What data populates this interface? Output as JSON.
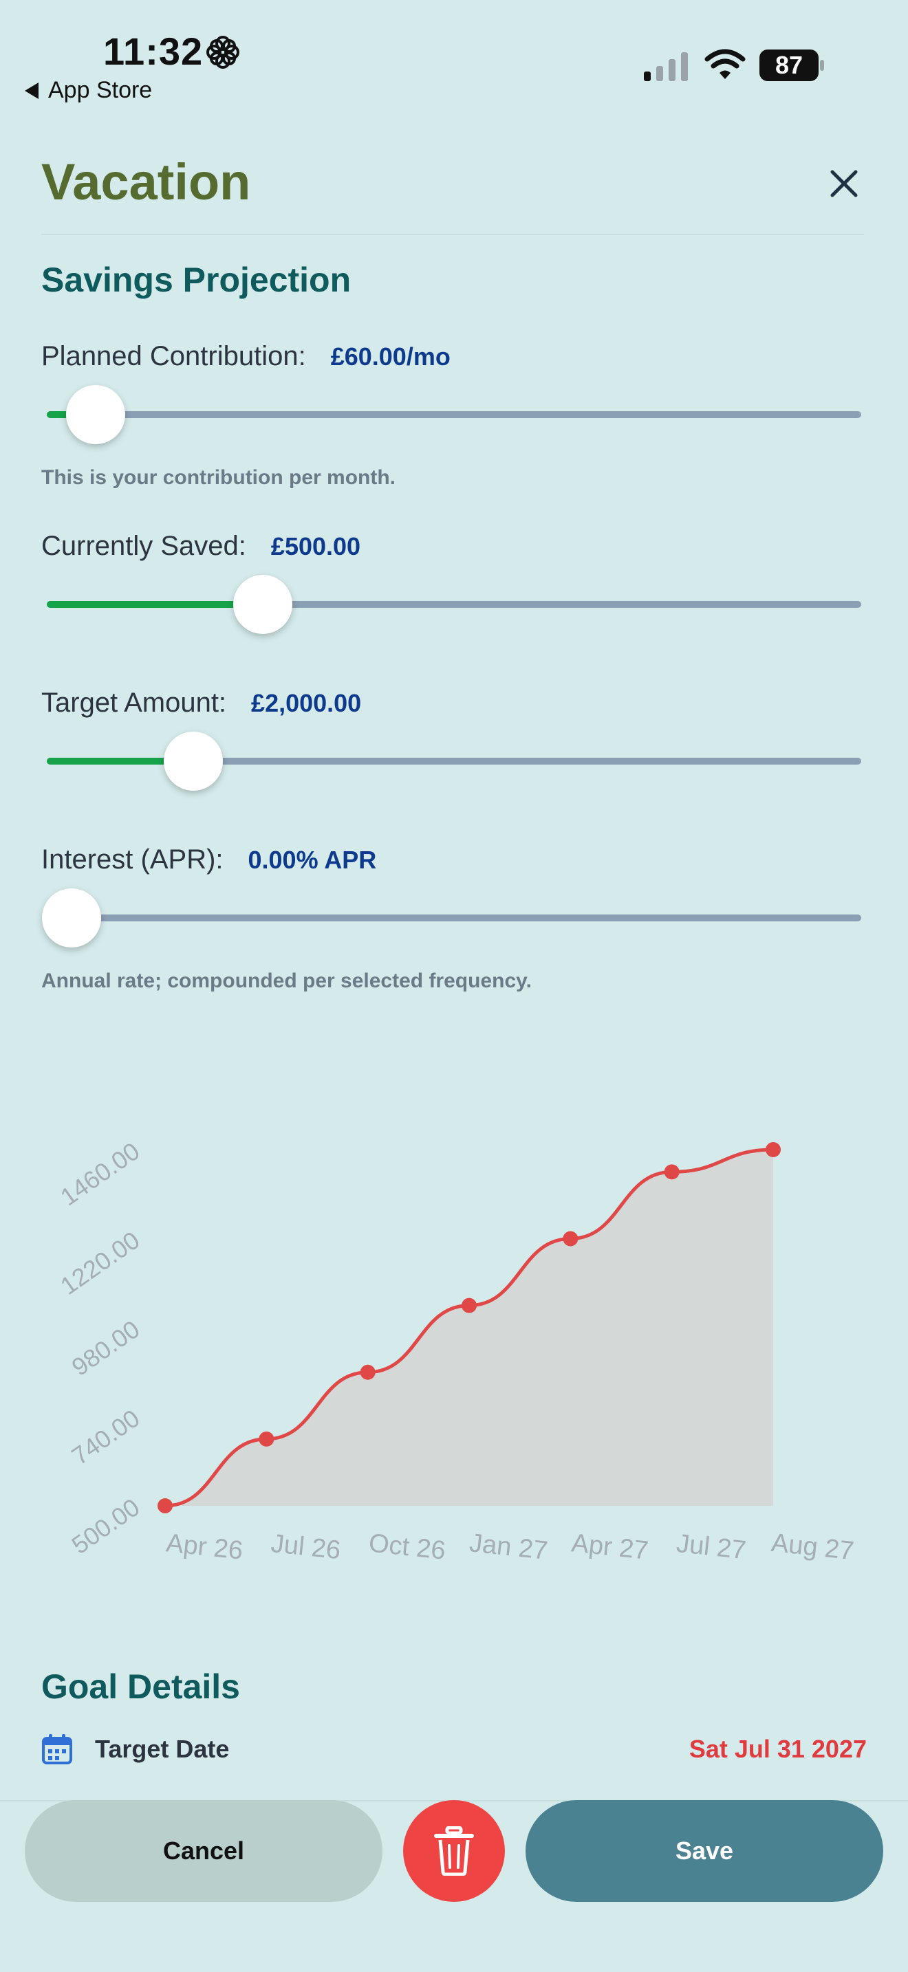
{
  "status_bar": {
    "time": "11:32",
    "back_label": "App Store",
    "battery": "87"
  },
  "header": {
    "title": "Vacation"
  },
  "projection": {
    "section_title": "Savings Projection",
    "contribution": {
      "label": "Planned Contribution:",
      "value": "£60.00/mo",
      "fraction": 0.06,
      "hint": "This is your contribution per month."
    },
    "saved": {
      "label": "Currently Saved:",
      "value": "£500.00",
      "fraction": 0.265
    },
    "target": {
      "label": "Target Amount:",
      "value": "£2,000.00",
      "fraction": 0.18
    },
    "interest": {
      "label": "Interest (APR):",
      "value": "0.00% APR",
      "fraction": 0.03,
      "hint": "Annual rate; compounded per selected frequency."
    }
  },
  "chart_data": {
    "type": "area",
    "x": [
      "Apr 26",
      "Jul 26",
      "Oct 26",
      "Jan 27",
      "Apr 27",
      "Jul 27",
      "Aug 27"
    ],
    "y_ticks": [
      "500.00",
      "740.00",
      "980.00",
      "1220.00",
      "1460.00"
    ],
    "ylim": [
      500,
      1460
    ],
    "series": [
      {
        "values": [
          500,
          680,
          860,
          1040,
          1220,
          1400,
          1460
        ]
      }
    ],
    "colors": {
      "line": "#e04848",
      "area": "#d4d8d6",
      "tick": "#a4aeb3"
    }
  },
  "goal": {
    "section_title": "Goal Details",
    "target_date_label": "Target Date",
    "target_date_value": "Sat Jul 31 2027"
  },
  "actions": {
    "cancel": "Cancel",
    "save": "Save"
  }
}
